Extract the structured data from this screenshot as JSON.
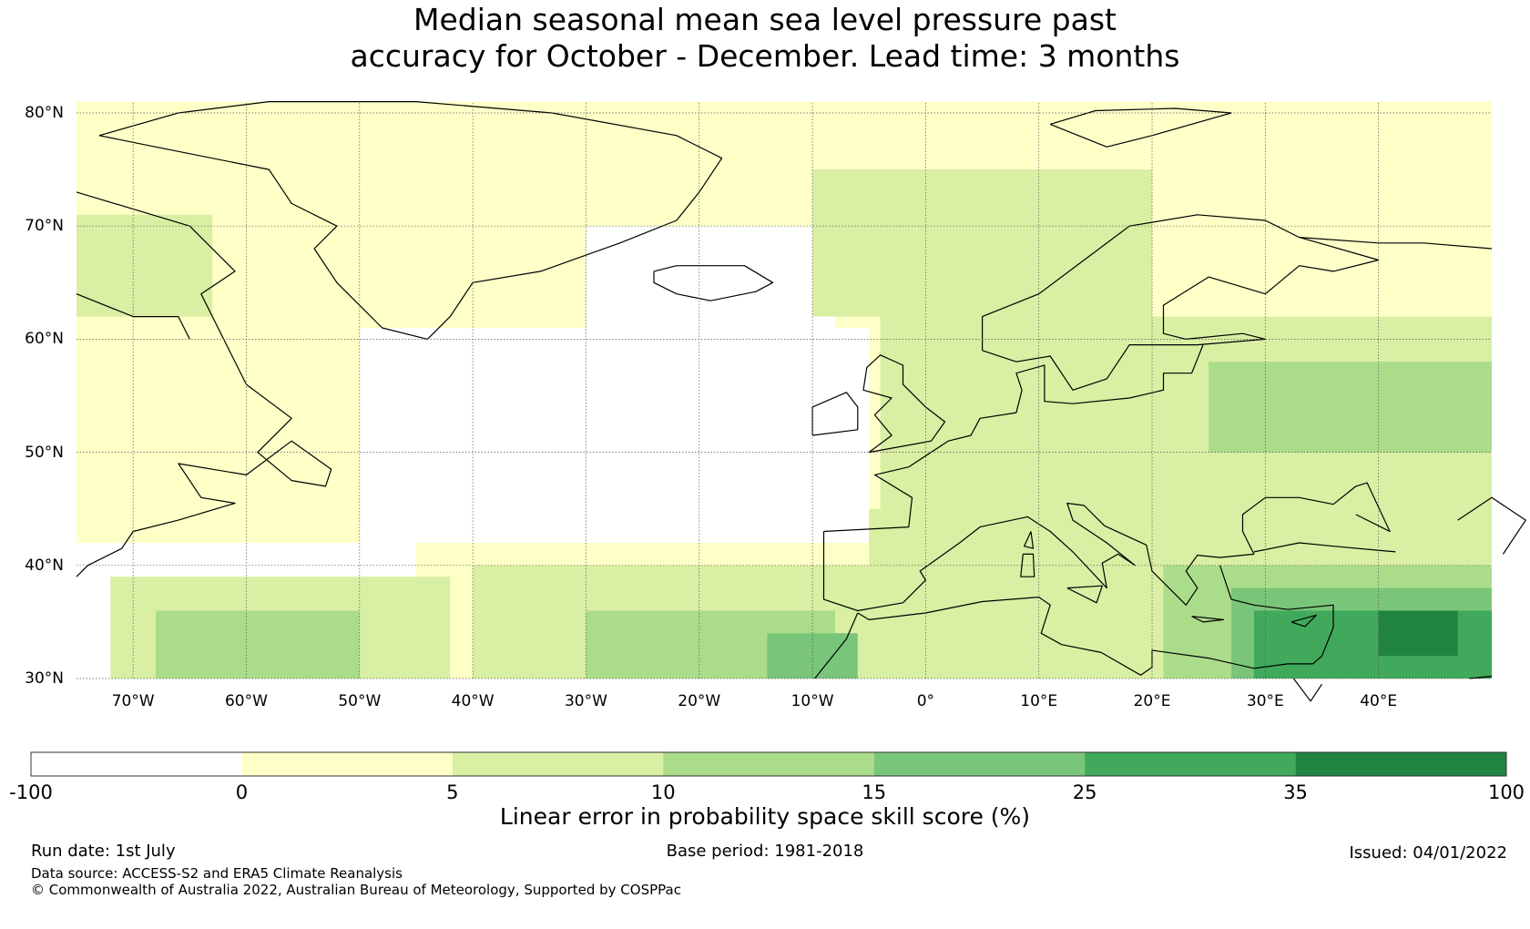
{
  "title": {
    "line1": "Median seasonal mean sea level pressure past",
    "line2": "accuracy for October - December. Lead time: 3 months"
  },
  "map": {
    "lat_range": [
      30,
      81
    ],
    "lon_range": [
      -75,
      50
    ],
    "lat_labels": [
      "80°N",
      "70°N",
      "60°N",
      "50°N",
      "40°N",
      "30°N"
    ],
    "lon_labels": [
      "70°W",
      "60°W",
      "50°W",
      "40°W",
      "30°W",
      "20°W",
      "10°W",
      "0°",
      "10°E",
      "20°E",
      "30°E",
      "40°E"
    ],
    "gridlines": "dotted",
    "skill_regions": [
      {
        "bin": "0-5",
        "lon": [
          -75,
          50
        ],
        "lat": [
          30,
          81
        ]
      },
      {
        "bin": "-100-0",
        "lon": [
          -50,
          -5
        ],
        "lat": [
          42,
          61
        ]
      },
      {
        "bin": "-100-0",
        "lon": [
          -30,
          -8
        ],
        "lat": [
          60,
          70
        ]
      },
      {
        "bin": "-100-0",
        "lon": [
          -75,
          -45
        ],
        "lat": [
          30,
          42
        ]
      },
      {
        "bin": "5-10",
        "lon": [
          -75,
          -63
        ],
        "lat": [
          62,
          71
        ]
      },
      {
        "bin": "5-10",
        "lon": [
          -72,
          -42
        ],
        "lat": [
          30,
          39
        ]
      },
      {
        "bin": "10-15",
        "lon": [
          -68,
          -50
        ],
        "lat": [
          30,
          36
        ]
      },
      {
        "bin": "5-10",
        "lon": [
          -40,
          -5
        ],
        "lat": [
          30,
          40
        ]
      },
      {
        "bin": "10-15",
        "lon": [
          -30,
          -8
        ],
        "lat": [
          30,
          36
        ]
      },
      {
        "bin": "15-25",
        "lon": [
          -14,
          -6
        ],
        "lat": [
          30,
          34
        ]
      },
      {
        "bin": "5-10",
        "lon": [
          -10,
          20
        ],
        "lat": [
          62,
          75
        ]
      },
      {
        "bin": "5-10",
        "lon": [
          -4,
          50
        ],
        "lat": [
          38,
          62
        ]
      },
      {
        "bin": "5-10",
        "lon": [
          -5,
          50
        ],
        "lat": [
          30,
          45
        ]
      },
      {
        "bin": "10-15",
        "lon": [
          25,
          50
        ],
        "lat": [
          50,
          58
        ]
      },
      {
        "bin": "10-15",
        "lon": [
          21,
          50
        ],
        "lat": [
          30,
          40
        ]
      },
      {
        "bin": "15-25",
        "lon": [
          27,
          50
        ],
        "lat": [
          30,
          38
        ]
      },
      {
        "bin": "25-35",
        "lon": [
          29,
          50
        ],
        "lat": [
          30,
          36
        ]
      },
      {
        "bin": "35-100",
        "lon": [
          40,
          47
        ],
        "lat": [
          32,
          36
        ]
      }
    ]
  },
  "colorbar": {
    "bins": [
      {
        "from": -100,
        "to": 0,
        "color": "#ffffff"
      },
      {
        "from": 0,
        "to": 5,
        "color": "#ffffc8"
      },
      {
        "from": 5,
        "to": 10,
        "color": "#d9efa3"
      },
      {
        "from": 10,
        "to": 15,
        "color": "#abdc8a"
      },
      {
        "from": 15,
        "to": 25,
        "color": "#79c57a"
      },
      {
        "from": 25,
        "to": 35,
        "color": "#40a95b"
      },
      {
        "from": 35,
        "to": 100,
        "color": "#208440"
      }
    ],
    "ticks": [
      "-100",
      "0",
      "5",
      "10",
      "15",
      "25",
      "35",
      "100"
    ],
    "label": "Linear error in probability space skill score (%)"
  },
  "footer": {
    "run_date": "Run date: 1st July",
    "base_period": "Base period: 1981-2018",
    "issued": "Issued: 04/01/2022",
    "data_source": "Data source: ACCESS-S2 and ERA5 Climate Reanalysis",
    "copyright": "© Commonwealth of Australia 2022, Australian Bureau of Meteorology, Supported by COSPPac"
  }
}
